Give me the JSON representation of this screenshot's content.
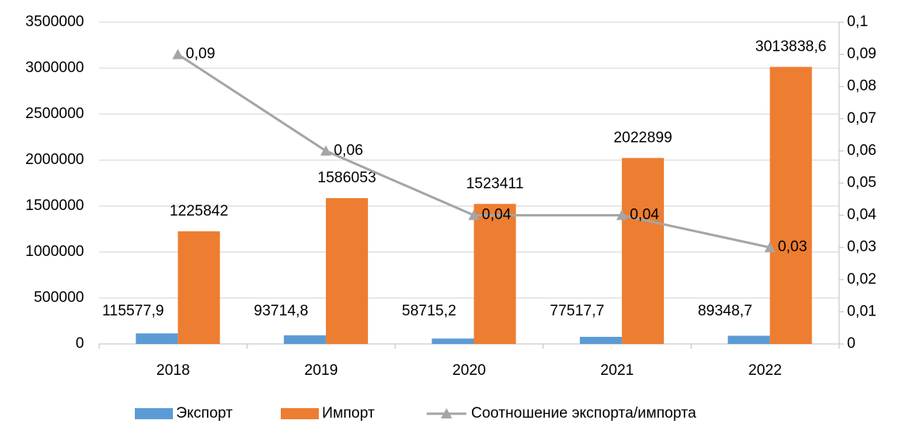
{
  "chart_data": {
    "type": "bar",
    "categories": [
      "2018",
      "2019",
      "2020",
      "2021",
      "2022"
    ],
    "series": [
      {
        "name": "Экспорт",
        "color": "#5b9bd5",
        "values": [
          115577.9,
          93714.8,
          58715.2,
          77517.7,
          89348.7
        ],
        "value_labels": [
          "115577,9",
          "93714,8",
          "58715,2",
          "77517,7",
          "89348,7"
        ]
      },
      {
        "name": "Импорт",
        "color": "#ed7d31",
        "values": [
          1225842,
          1586053,
          1523411,
          2022899,
          3013838.6
        ],
        "value_labels": [
          "1225842",
          "1586053",
          "1523411",
          "2022899",
          "3013838,6"
        ]
      },
      {
        "name": "Соотношение экспорта/импорта",
        "type": "line",
        "axis": "y2",
        "color": "#a5a5a5",
        "values": [
          0.09,
          0.06,
          0.04,
          0.04,
          0.03
        ],
        "value_labels": [
          "0,09",
          "0,06",
          "0,04",
          "0,04",
          "0,03"
        ]
      }
    ],
    "ylim": [
      0,
      3500000
    ],
    "yticks": [
      0,
      500000,
      1000000,
      1500000,
      2000000,
      2500000,
      3000000,
      3500000
    ],
    "y2lim": [
      0,
      0.1
    ],
    "y2ticks": [
      0,
      {
        "value": 0.01,
        "label": "0,01"
      },
      {
        "value": 0.02,
        "label": "0,02"
      },
      {
        "value": 0.03,
        "label": "0,03"
      },
      {
        "value": 0.04,
        "label": "0,04"
      },
      {
        "value": 0.05,
        "label": "0,05"
      },
      {
        "value": 0.06,
        "label": "0,06"
      },
      {
        "value": 0.07,
        "label": "0,07"
      },
      {
        "value": 0.08,
        "label": "0,08"
      },
      {
        "value": 0.09,
        "label": "0,09"
      },
      {
        "value": 0.1,
        "label": "0,1"
      }
    ],
    "grid": true,
    "legend": "bottom"
  }
}
